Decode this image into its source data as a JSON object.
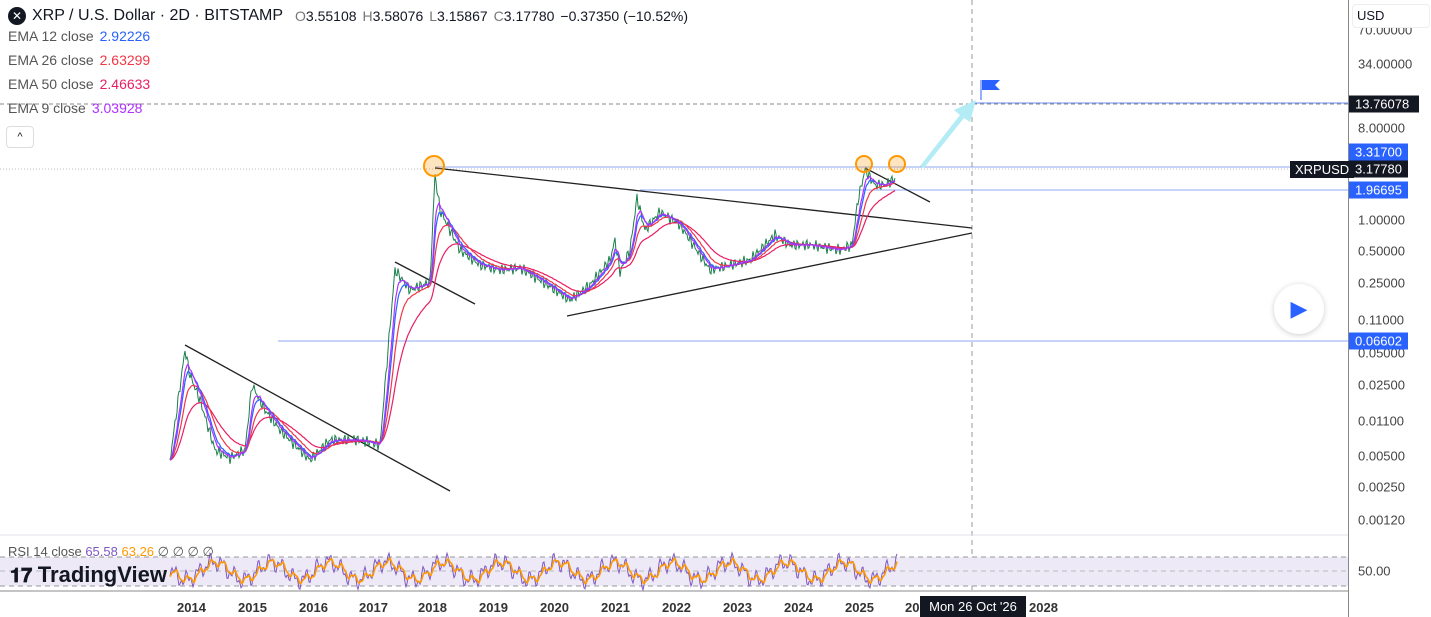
{
  "header": {
    "symbol_icon": "xrp-logo",
    "title": "XRP / U.S. Dollar · 2D · BITSTAMP",
    "o_label": "O",
    "open": "3.55108",
    "h_label": "H",
    "high": "3.58076",
    "l_label": "L",
    "low": "3.15867",
    "c_label": "C",
    "close": "3.17780",
    "change": "−0.37350 (−10.52%)"
  },
  "indicators": [
    {
      "label": "EMA 12 close",
      "value": "2.92226",
      "color": "#2962ff"
    },
    {
      "label": "EMA 26 close",
      "value": "2.63299",
      "color": "#f23645"
    },
    {
      "label": "EMA 50 close",
      "value": "2.46633",
      "color": "#e91e63"
    },
    {
      "label": "EMA 9 close",
      "value": "3.03928",
      "color": "#b030ff"
    }
  ],
  "collapse_icon": "chevron-up-icon",
  "collapse_glyph": "^",
  "currency": "USD",
  "price_axis": [
    "70.00000",
    "34.00000",
    "8.00000",
    "1.00000",
    "0.50000",
    "0.25000",
    "0.11000",
    "0.05000",
    "0.02500",
    "0.01100",
    "0.00500",
    "0.00250",
    "0.00120"
  ],
  "price_labels": {
    "target": "13.76078",
    "resistance": "3.31700",
    "current": "3.17780",
    "support": "1.96695",
    "low_line": "0.06602",
    "symbol": "XRPUSD"
  },
  "rsi": {
    "label": "RSI 14 close",
    "value1": "65.58",
    "value2": "63.26",
    "extras": "∅ ∅ ∅ ∅",
    "axis": "50.00",
    "color1": "#7e57c2",
    "color2": "#ff9800"
  },
  "brand": "TradingView",
  "years": [
    "2014",
    "2015",
    "2016",
    "2017",
    "2018",
    "2019",
    "2020",
    "2021",
    "2022",
    "2023",
    "2024",
    "2025",
    "20",
    "2028"
  ],
  "crosshair_date": "Mon 26 Oct '26",
  "play_icon": "play-icon"
}
